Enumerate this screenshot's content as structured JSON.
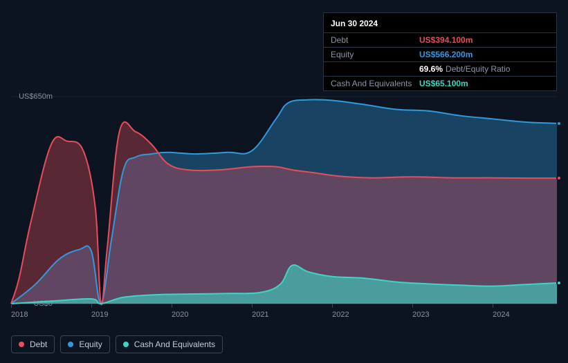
{
  "chart": {
    "type": "area",
    "background_color": "#0d1421",
    "grid_color": "#3a4556",
    "text_color": "#8b95a7",
    "label_fontsize": 11,
    "y_axis": {
      "max_label": "US$650m",
      "min_label": "US$0",
      "ylim_max": 650,
      "ylim_min": 0
    },
    "x_axis": {
      "ticks": [
        "2018",
        "2019",
        "2020",
        "2021",
        "2022",
        "2023",
        "2024"
      ],
      "xlim_min": 2018,
      "xlim_max": 2024.8
    },
    "series": {
      "debt": {
        "label": "Debt",
        "color": "#e84d5b",
        "fill_opacity": 0.35,
        "points": [
          [
            2018.0,
            0
          ],
          [
            2018.1,
            80
          ],
          [
            2018.25,
            260
          ],
          [
            2018.5,
            500
          ],
          [
            2018.7,
            510
          ],
          [
            2018.9,
            480
          ],
          [
            2019.05,
            300
          ],
          [
            2019.12,
            0
          ],
          [
            2019.2,
            180
          ],
          [
            2019.35,
            540
          ],
          [
            2019.55,
            540
          ],
          [
            2019.75,
            500
          ],
          [
            2019.95,
            440
          ],
          [
            2020.2,
            420
          ],
          [
            2020.6,
            420
          ],
          [
            2021.0,
            430
          ],
          [
            2021.3,
            430
          ],
          [
            2021.5,
            420
          ],
          [
            2021.8,
            410
          ],
          [
            2022.1,
            400
          ],
          [
            2022.5,
            395
          ],
          [
            2023.0,
            398
          ],
          [
            2023.5,
            395
          ],
          [
            2024.0,
            395
          ],
          [
            2024.5,
            394
          ],
          [
            2024.8,
            394
          ]
        ]
      },
      "equity": {
        "label": "Equity",
        "color": "#2f9ae0",
        "fill_opacity": 0.35,
        "points": [
          [
            2018.0,
            0
          ],
          [
            2018.3,
            60
          ],
          [
            2018.6,
            140
          ],
          [
            2018.85,
            170
          ],
          [
            2019.0,
            165
          ],
          [
            2019.12,
            0
          ],
          [
            2019.25,
            200
          ],
          [
            2019.4,
            420
          ],
          [
            2019.55,
            460
          ],
          [
            2019.75,
            470
          ],
          [
            2019.95,
            475
          ],
          [
            2020.3,
            470
          ],
          [
            2020.7,
            475
          ],
          [
            2021.0,
            480
          ],
          [
            2021.3,
            580
          ],
          [
            2021.45,
            630
          ],
          [
            2021.7,
            640
          ],
          [
            2022.0,
            638
          ],
          [
            2022.4,
            625
          ],
          [
            2022.8,
            610
          ],
          [
            2023.2,
            605
          ],
          [
            2023.6,
            590
          ],
          [
            2024.0,
            580
          ],
          [
            2024.4,
            570
          ],
          [
            2024.8,
            566
          ]
        ]
      },
      "cash": {
        "label": "Cash And Equivalents",
        "color": "#3dd6c4",
        "fill_opacity": 0.6,
        "points": [
          [
            2018.0,
            0
          ],
          [
            2018.5,
            8
          ],
          [
            2019.0,
            15
          ],
          [
            2019.12,
            0
          ],
          [
            2019.4,
            20
          ],
          [
            2019.8,
            28
          ],
          [
            2020.2,
            30
          ],
          [
            2020.7,
            32
          ],
          [
            2021.1,
            35
          ],
          [
            2021.35,
            60
          ],
          [
            2021.5,
            120
          ],
          [
            2021.7,
            100
          ],
          [
            2022.0,
            85
          ],
          [
            2022.4,
            80
          ],
          [
            2022.8,
            68
          ],
          [
            2023.2,
            62
          ],
          [
            2023.6,
            58
          ],
          [
            2024.0,
            55
          ],
          [
            2024.4,
            60
          ],
          [
            2024.8,
            65
          ]
        ]
      }
    },
    "tooltip": {
      "date": "Jun 30 2024",
      "debt_label": "Debt",
      "debt_value": "US$394.100m",
      "equity_label": "Equity",
      "equity_value": "US$566.200m",
      "ratio_value": "69.6%",
      "ratio_label": "Debt/Equity Ratio",
      "cash_label": "Cash And Equivalents",
      "cash_value": "US$65.100m"
    },
    "hover_x": 2024.5,
    "markers": {
      "debt_y": 394,
      "equity_y": 566,
      "cash_y": 65
    }
  },
  "legend": {
    "items": [
      {
        "label": "Debt",
        "color": "#e84d5b"
      },
      {
        "label": "Equity",
        "color": "#2f9ae0"
      },
      {
        "label": "Cash And Equivalents",
        "color": "#3dd6c4"
      }
    ]
  }
}
